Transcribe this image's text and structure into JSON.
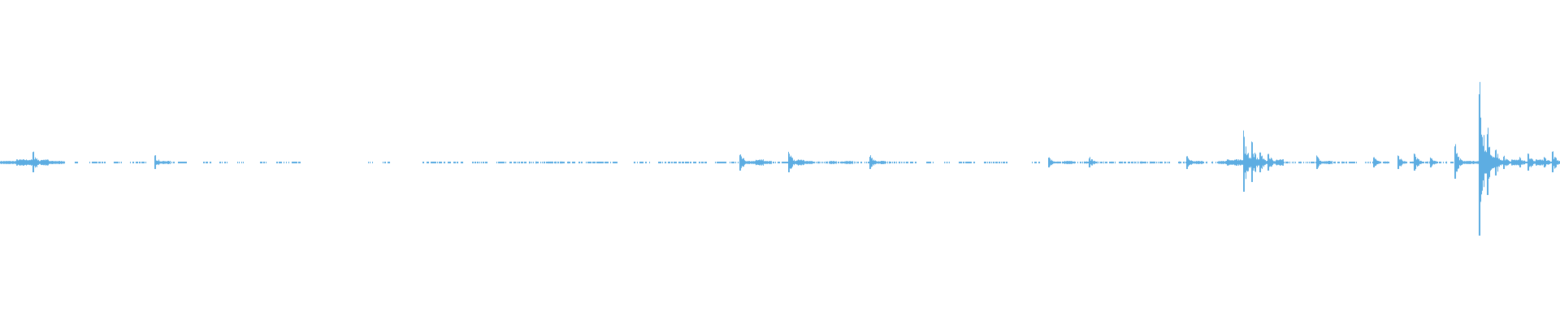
{
  "chart_data": {
    "type": "area",
    "description_kind": "audio-waveform",
    "color": "#5dade2",
    "ylim": [
      -1,
      1
    ],
    "grid": false,
    "legend": "none",
    "title": "",
    "xlabel": "",
    "ylabel": "",
    "peak_amplitude": [
      0.01,
      0.01,
      0.02,
      0.02,
      0.06,
      0.02,
      0.01,
      0.01,
      null,
      0.004,
      null,
      0.004,
      0.004,
      null,
      0.004,
      null,
      0.004,
      0.004,
      null,
      0.04,
      0.01,
      0.004,
      0.004,
      null,
      null,
      0.004,
      null,
      0.004,
      null,
      0.004,
      null,
      null,
      0.004,
      null,
      0.004,
      0.004,
      0.004,
      null,
      null,
      null,
      null,
      null,
      null,
      null,
      null,
      0.004,
      null,
      0.004,
      null,
      null,
      null,
      null,
      0.004,
      0.004,
      0.004,
      0.004,
      0.004,
      null,
      0.004,
      0.004,
      null,
      0.004,
      0.004,
      0.004,
      0.004,
      0.006,
      0.006,
      0.006,
      0.006,
      0.006,
      0.004,
      0.004,
      0.004,
      0.004,
      0.004,
      0.004,
      null,
      null,
      0.004,
      0.004,
      null,
      0.004,
      0.004,
      0.004,
      0.004,
      0.004,
      0.004,
      null,
      0.004,
      0.004,
      0.004,
      0.05,
      0.01,
      0.02,
      0.01,
      0.004,
      0.004,
      0.06,
      0.02,
      0.01,
      0.006,
      0.006,
      0.01,
      0.006,
      0.01,
      0.006,
      0.006,
      0.04,
      0.01,
      0.006,
      0.006,
      0.004,
      0.004,
      null,
      0.004,
      null,
      0.004,
      null,
      0.004,
      0.004,
      null,
      0.004,
      0.004,
      0.004,
      null,
      null,
      null,
      0.004,
      null,
      0.03,
      0.006,
      0.01,
      0.006,
      0.006,
      0.03,
      0.006,
      0.006,
      0.006,
      0.006,
      0.006,
      0.006,
      0.006,
      0.006,
      0.006,
      null,
      0.006,
      0.04,
      0.01,
      0.006,
      0.006,
      0.01,
      0.02,
      0.02,
      0.18,
      0.12,
      0.06,
      0.05,
      0.02,
      0.006,
      0.006,
      0.006,
      0.006,
      0.04,
      0.01,
      0.006,
      0.006,
      0.006,
      null,
      0.006,
      0.03,
      0.006,
      null,
      0.04,
      0.006,
      0.05,
      0.006,
      0.03,
      0.006,
      0.006,
      0.1,
      0.01,
      0.01,
      0.45,
      0.2,
      0.08,
      0.04,
      0.02,
      0.03,
      0.05,
      0.02,
      0.03,
      0.06
    ]
  }
}
